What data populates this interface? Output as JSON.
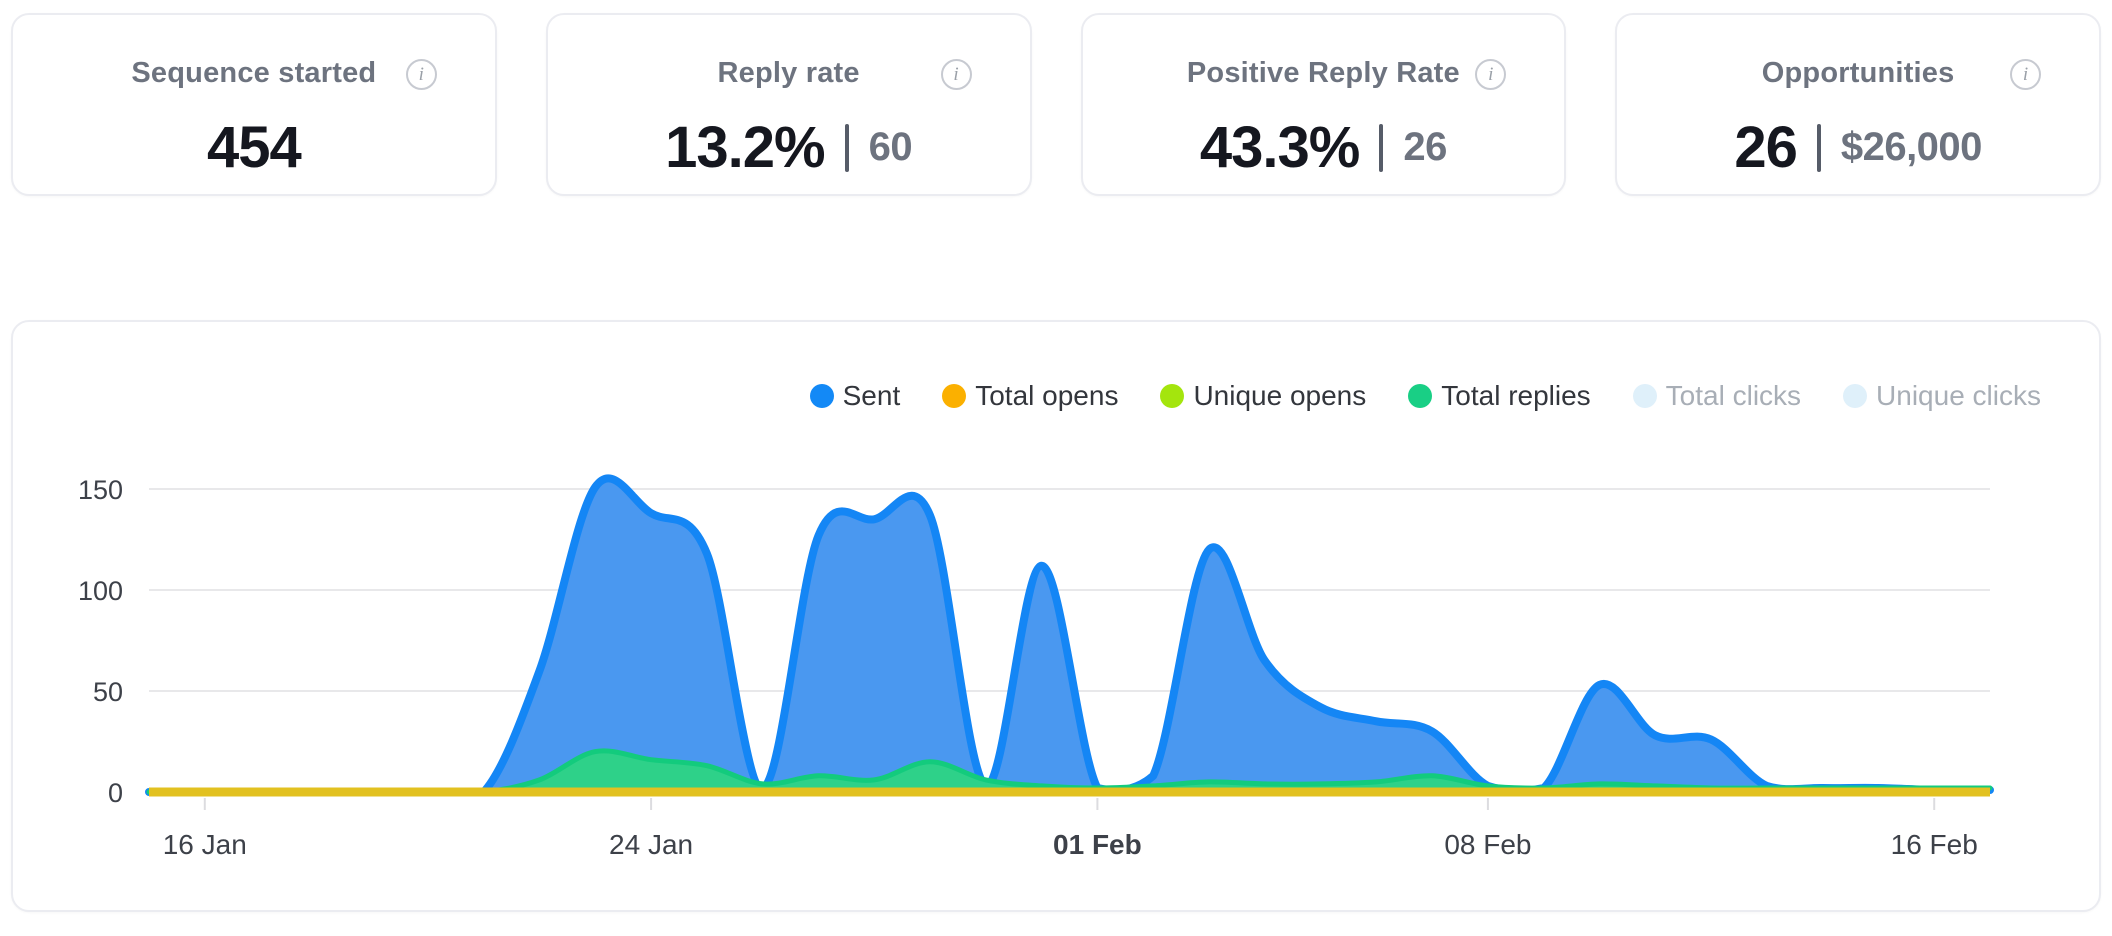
{
  "icons": {
    "info_glyph": "i"
  },
  "stats": [
    {
      "label": "Sequence started",
      "value": "454",
      "secondary": null
    },
    {
      "label": "Reply rate",
      "value": "13.2%",
      "secondary": "60"
    },
    {
      "label": "Positive Reply Rate",
      "value": "43.3%",
      "secondary": "26"
    },
    {
      "label": "Opportunities",
      "value": "26",
      "secondary": "$26,000"
    }
  ],
  "chart_data": {
    "type": "area",
    "title": "",
    "xlabel": "",
    "ylabel": "",
    "ylim": [
      0,
      150
    ],
    "yticks": [
      0,
      50,
      100,
      150
    ],
    "grid": true,
    "legend_position": "top-right",
    "x": [
      "15 Jan",
      "16 Jan",
      "17 Jan",
      "18 Jan",
      "19 Jan",
      "20 Jan",
      "21 Jan",
      "22 Jan",
      "23 Jan",
      "24 Jan",
      "25 Jan",
      "26 Jan",
      "27 Jan",
      "28 Jan",
      "29 Jan",
      "30 Jan",
      "31 Jan",
      "01 Feb",
      "02 Feb",
      "03 Feb",
      "04 Feb",
      "05 Feb",
      "06 Feb",
      "07 Feb",
      "08 Feb",
      "09 Feb",
      "10 Feb",
      "11 Feb",
      "12 Feb",
      "13 Feb",
      "14 Feb",
      "15 Feb",
      "16 Feb",
      "17 Feb"
    ],
    "x_ticks": [
      {
        "label": "16 Jan",
        "index": 1,
        "bold": false
      },
      {
        "label": "24 Jan",
        "index": 9,
        "bold": false
      },
      {
        "label": "01 Feb",
        "index": 17,
        "bold": true
      },
      {
        "label": "08 Feb",
        "index": 24,
        "bold": false
      },
      {
        "label": "16 Feb",
        "index": 32,
        "bold": false
      }
    ],
    "series": [
      {
        "name": "Sent",
        "color": "#1389f6",
        "line_color": "#1486f5",
        "fill_color": "#4a98f0",
        "values": [
          0,
          0,
          0,
          0,
          0,
          0,
          0,
          60,
          151,
          138,
          118,
          2,
          127,
          135,
          137,
          3,
          112,
          2,
          8,
          120,
          65,
          42,
          35,
          30,
          3,
          2,
          53,
          28,
          26,
          3,
          2,
          2,
          1,
          1
        ]
      },
      {
        "name": "Total opens",
        "color": "#fbb000",
        "line_color": "#e2c120",
        "render_as_baseline": true,
        "values": [
          0,
          0,
          0,
          0,
          0,
          0,
          0,
          0,
          0,
          0,
          0,
          0,
          0,
          0,
          0,
          0,
          0,
          0,
          0,
          0,
          0,
          0,
          0,
          0,
          0,
          0,
          0,
          0,
          0,
          0,
          0,
          0,
          0,
          0
        ]
      },
      {
        "name": "Unique opens",
        "color": "#a4e50d",
        "render_as_baseline": true,
        "values": [
          0,
          0,
          0,
          0,
          0,
          0,
          0,
          0,
          0,
          0,
          0,
          0,
          0,
          0,
          0,
          0,
          0,
          0,
          0,
          0,
          0,
          0,
          0,
          0,
          0,
          0,
          0,
          0,
          0,
          0,
          0,
          0,
          0,
          0
        ]
      },
      {
        "name": "Total replies",
        "color": "#19cf85",
        "line_color": "#13cb7d",
        "fill_color": "#2ed189",
        "values": [
          0,
          0,
          0,
          0,
          0,
          0,
          0,
          6,
          20,
          16,
          13,
          4,
          8,
          6,
          15,
          6,
          3,
          2,
          3,
          5,
          4,
          4,
          5,
          8,
          3,
          2,
          4,
          3,
          2,
          2,
          2,
          2,
          2,
          2
        ]
      }
    ],
    "legend": [
      {
        "label": "Sent",
        "color": "#1389f6",
        "disabled": false
      },
      {
        "label": "Total opens",
        "color": "#fbb000",
        "disabled": false
      },
      {
        "label": "Unique opens",
        "color": "#a4e50d",
        "disabled": false
      },
      {
        "label": "Total replies",
        "color": "#19cf85",
        "disabled": false
      },
      {
        "label": "Total clicks",
        "color": "#dff0fa",
        "disabled": true
      },
      {
        "label": "Unique clicks",
        "color": "#dff0fa",
        "disabled": true
      }
    ],
    "style": {
      "grid_color": "#e8e8ea",
      "tick_color": "#dcdce0",
      "axis_label_color": "#3d4149",
      "baseline_line_color": "#e2c120"
    }
  }
}
